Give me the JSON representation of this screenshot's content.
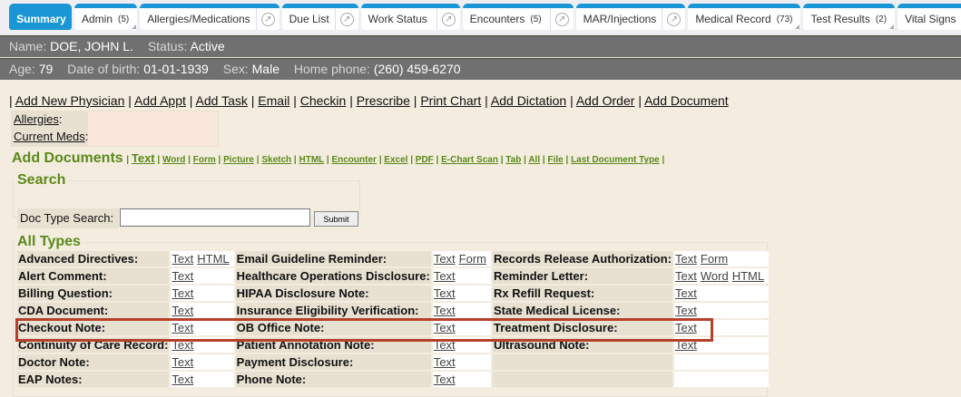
{
  "tabs": [
    {
      "label": "Summary",
      "active": true
    },
    {
      "label": "Admin",
      "count": "(5)",
      "menu": true
    },
    {
      "label": "Allergies/Medications",
      "popout": true
    },
    {
      "label": "Due List",
      "popout": true
    },
    {
      "label": "Work Status",
      "popout": true
    },
    {
      "label": "Encounters",
      "count": "(5)",
      "popout": true
    },
    {
      "label": "MAR/Injections",
      "popout": true
    },
    {
      "label": "Medical Record",
      "count": "(73)",
      "menu": true
    },
    {
      "label": "Test Results",
      "count": "(2)",
      "menu": true
    },
    {
      "label": "Vital Signs",
      "popout": true
    }
  ],
  "patient": {
    "name_label": "Name:",
    "name": "DOE, JOHN L.",
    "status_label": "Status:",
    "status": "Active",
    "age_label": "Age:",
    "age": "79",
    "dob_label": "Date of birth:",
    "dob": "01-01-1939",
    "sex_label": "Sex:",
    "sex": "Male",
    "phone_label": "Home phone:",
    "phone": "(260) 459-6270"
  },
  "actions": [
    "Add New Physician",
    "Add Appt",
    "Add Task",
    "Email",
    "Checkin",
    "Prescribe",
    "Print Chart",
    "Add Dictation",
    "Add Order",
    "Add Document"
  ],
  "allergies_label": "Allergies",
  "meds_label": "Current Meds",
  "add_docs": {
    "title": "Add Documents",
    "first": "Text",
    "links": [
      "Word",
      "Form",
      "Picture",
      "Sketch",
      "HTML",
      "Encounter",
      "Excel",
      "PDF",
      "E-Chart Scan",
      "Tab",
      "All",
      "File",
      "Last Document Type"
    ]
  },
  "search": {
    "legend": "Search",
    "label": "Doc Type Search:",
    "value": "",
    "submit": "Submit"
  },
  "all_types": {
    "legend": "All Types",
    "rows": [
      [
        [
          "Advanced Directives",
          [
            "Text",
            "HTML"
          ]
        ],
        [
          "Email Guideline Reminder",
          [
            "Text",
            "Form"
          ]
        ],
        [
          "Records Release Authorization",
          [
            "Text",
            "Form"
          ]
        ]
      ],
      [
        [
          "Alert Comment",
          [
            "Text"
          ]
        ],
        [
          "Healthcare Operations Disclosure",
          [
            "Text"
          ]
        ],
        [
          "Reminder Letter",
          [
            "Text",
            "Word",
            "HTML"
          ]
        ]
      ],
      [
        [
          "Billing Question",
          [
            "Text"
          ]
        ],
        [
          "HIPAA Disclosure Note",
          [
            "Text"
          ]
        ],
        [
          "Rx Refill Request",
          [
            "Text"
          ]
        ]
      ],
      [
        [
          "CDA Document",
          [
            "Text"
          ]
        ],
        [
          "Insurance Eligibility Verification",
          [
            "Text"
          ]
        ],
        [
          "State Medical License",
          [
            "Text"
          ]
        ]
      ],
      [
        [
          "Checkout Note",
          [
            "Text"
          ]
        ],
        [
          "OB Office Note",
          [
            "Text"
          ]
        ],
        [
          "Treatment Disclosure",
          [
            "Text"
          ]
        ]
      ],
      [
        [
          "Continuity of Care Record",
          [
            "Text"
          ]
        ],
        [
          "Patient Annotation Note",
          [
            "Text"
          ]
        ],
        [
          "Ultrasound Note",
          [
            "Text"
          ]
        ]
      ],
      [
        [
          "Doctor Note",
          [
            "Text"
          ]
        ],
        [
          "Payment Disclosure",
          [
            "Text"
          ]
        ],
        null
      ],
      [
        [
          "EAP Notes",
          [
            "Text"
          ]
        ],
        [
          "Phone Note",
          [
            "Text"
          ]
        ],
        null
      ]
    ]
  },
  "colors": {
    "tab_accent": "#1a96d4",
    "section_green": "#5a8a1a",
    "highlight": "#b5412a"
  }
}
